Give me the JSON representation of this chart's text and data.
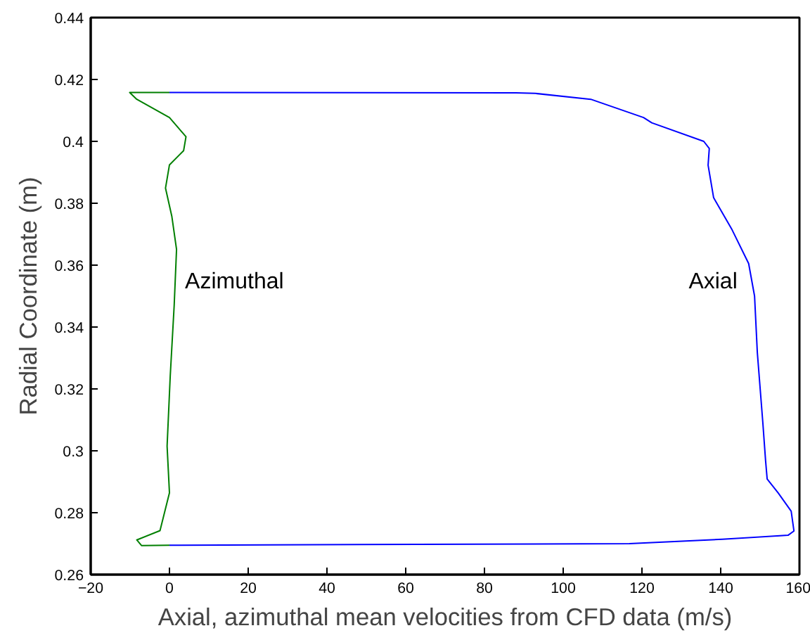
{
  "chart_data": {
    "type": "line",
    "xlabel": "Axial, azimuthal mean velocities from CFD data (m/s)",
    "ylabel": "Radial Coordinate (m)",
    "xlim": [
      -20,
      160
    ],
    "xticks": [
      {
        "value": -20,
        "label": "−20"
      },
      0,
      20,
      40,
      60,
      80,
      100,
      120,
      140,
      160
    ],
    "ylim": [
      0.26,
      0.44
    ],
    "yticks": [
      0.26,
      0.28,
      0.3,
      0.32,
      0.34,
      0.36,
      0.38,
      0.4,
      0.42,
      0.44
    ],
    "grid": false,
    "line_style": "solid",
    "marker": "none",
    "annotations": [
      "Azimuthal",
      "Axial"
    ],
    "series": [
      {
        "color": "#007f00",
        "x": [
          0,
          -10.1,
          -8.3,
          0,
          4.2,
          3.6,
          0,
          -1,
          0.6,
          1.8,
          1.2,
          0.2,
          -0.6,
          0,
          -2.4,
          -8.3,
          -7.1,
          0
        ],
        "values": [
          0.4158,
          0.4158,
          0.4136,
          0.4077,
          0.4015,
          0.397,
          0.3924,
          0.3849,
          0.3758,
          0.3651,
          0.347,
          0.3242,
          0.3015,
          0.2864,
          0.2742,
          0.2712,
          0.2694,
          0.2695
        ]
      },
      {
        "color": "#0000ff",
        "x": [
          0,
          88,
          92.9,
          107,
          120.4,
          122.5,
          135.7,
          137.1,
          136.8,
          138.2,
          142.9,
          147.1,
          148.6,
          149.3,
          150.7,
          151.4,
          151.8,
          154.6,
          157.9,
          158.6,
          157.1,
          140.4,
          116.8,
          0
        ],
        "values": [
          0.4158,
          0.4157,
          0.4155,
          0.4136,
          0.4077,
          0.406,
          0.4,
          0.3977,
          0.3923,
          0.3818,
          0.3714,
          0.3605,
          0.35,
          0.3318,
          0.3091,
          0.2968,
          0.2909,
          0.2864,
          0.2805,
          0.2741,
          0.2727,
          0.2714,
          0.27,
          0.2695
        ]
      }
    ]
  }
}
